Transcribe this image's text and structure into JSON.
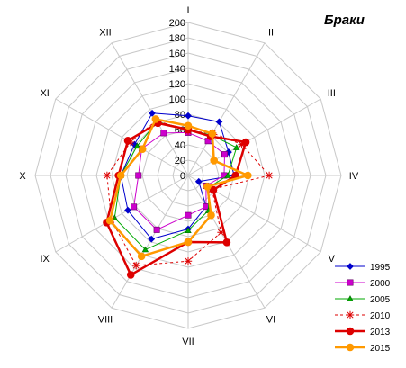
{
  "chart_data": {
    "type": "radar",
    "title": "Браки",
    "categories": [
      "I",
      "II",
      "III",
      "IV",
      "V",
      "VI",
      "VII",
      "VIII",
      "IX",
      "X",
      "XI",
      "XII"
    ],
    "rlim": [
      0,
      200
    ],
    "ticks": [
      0,
      20,
      40,
      60,
      80,
      100,
      120,
      140,
      160,
      180,
      200
    ],
    "grid": true,
    "legend_position": "bottom-right",
    "series": [
      {
        "name": "1995",
        "color": "#0000cc",
        "dash": "",
        "width": 1,
        "marker": "diamond",
        "values": [
          78,
          81,
          61,
          60,
          16,
          47,
          70,
          96,
          91,
          88,
          81,
          94
        ]
      },
      {
        "name": "2000",
        "color": "#cc00cc",
        "dash": "",
        "width": 1,
        "marker": "square",
        "values": [
          56,
          52,
          55,
          47,
          27,
          47,
          52,
          82,
          82,
          65,
          70,
          64
        ]
      },
      {
        "name": "2005",
        "color": "#00aa00",
        "dash": "",
        "width": 1,
        "marker": "triangle",
        "values": [
          60,
          61,
          73,
          52,
          31,
          53,
          72,
          112,
          111,
          88,
          77,
          81
        ]
      },
      {
        "name": "2010",
        "color": "#dd0000",
        "dash": "3,3",
        "width": 1,
        "marker": "star",
        "values": [
          58,
          64,
          81,
          106,
          36,
          86,
          112,
          136,
          116,
          106,
          87,
          83
        ]
      },
      {
        "name": "2013",
        "color": "#dd0000",
        "dash": "",
        "width": 2.5,
        "marker": "circle",
        "values": [
          60,
          59,
          87,
          62,
          38,
          101,
          87,
          150,
          123,
          91,
          91,
          79
        ]
      },
      {
        "name": "2015",
        "color": "#ff9900",
        "dash": "",
        "width": 2.5,
        "marker": "circle",
        "values": [
          65,
          63,
          39,
          78,
          29,
          60,
          87,
          122,
          118,
          88,
          69,
          85
        ]
      }
    ]
  }
}
